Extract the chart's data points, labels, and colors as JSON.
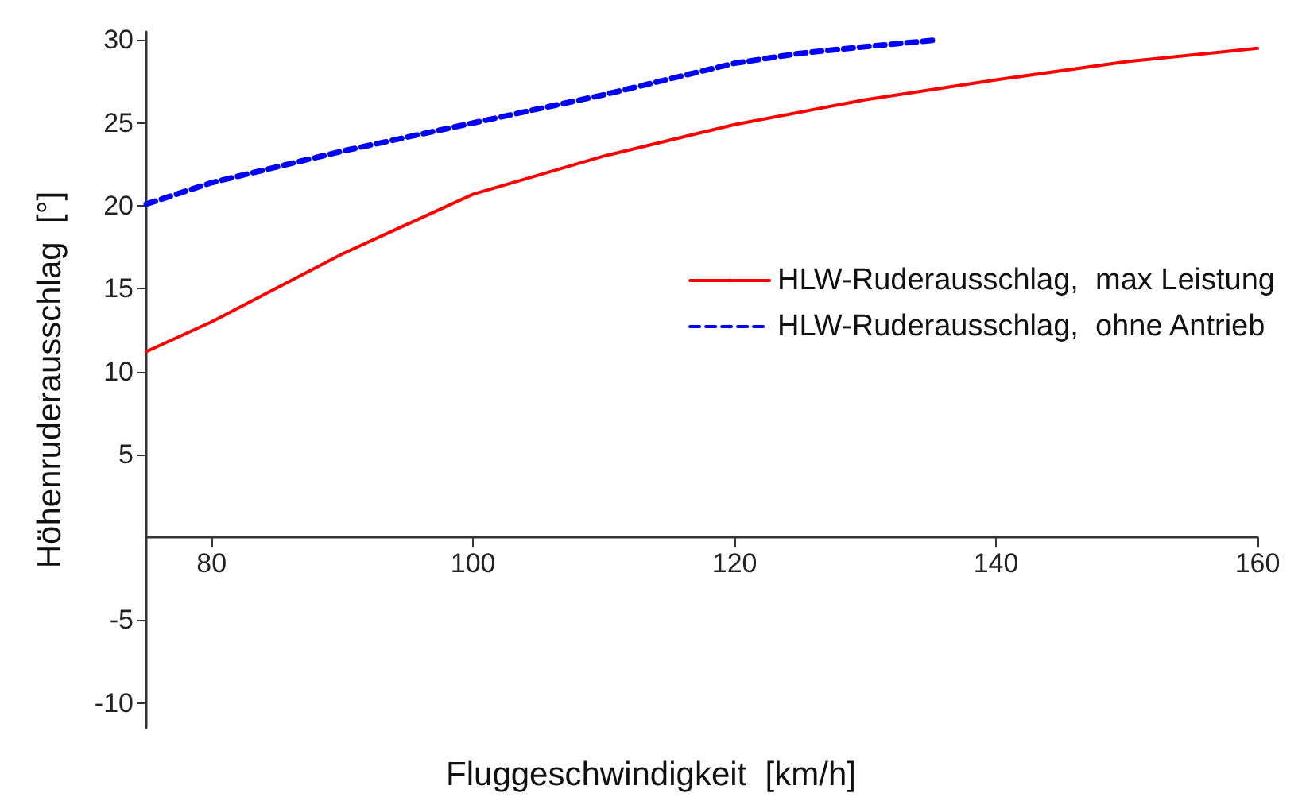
{
  "chart_data": {
    "type": "line",
    "xlabel": "Fluggeschwindigkeit  [km/h]",
    "ylabel": "Höhenruderausschlag  [°]",
    "xlim": [
      75,
      160
    ],
    "xticks": [
      80,
      100,
      120,
      140,
      160
    ],
    "ylim": [
      -11.5,
      30.5
    ],
    "yticks": [
      -10,
      -5,
      5,
      10,
      15,
      20,
      25,
      30
    ],
    "grid": false,
    "legend": "right",
    "marker": "none",
    "series": [
      {
        "name": "HLW-Ruderausschlag,  max Leistung",
        "color": "#ff0000",
        "line_style": "solid",
        "x": [
          75,
          80,
          90,
          100,
          110,
          120,
          130,
          140,
          150,
          160
        ],
        "values": [
          11.2,
          13.0,
          17.1,
          20.7,
          23.0,
          24.9,
          26.4,
          27.6,
          28.7,
          29.5
        ]
      },
      {
        "name": "HLW-Ruderausschlag,  ohne Antrieb",
        "color": "#0000ff",
        "line_style": "dashed",
        "x": [
          75,
          80,
          90,
          100,
          110,
          120,
          125,
          130,
          135.4
        ],
        "values": [
          20.1,
          21.4,
          23.3,
          25.0,
          26.7,
          28.6,
          29.2,
          29.6,
          30.0
        ]
      }
    ]
  }
}
